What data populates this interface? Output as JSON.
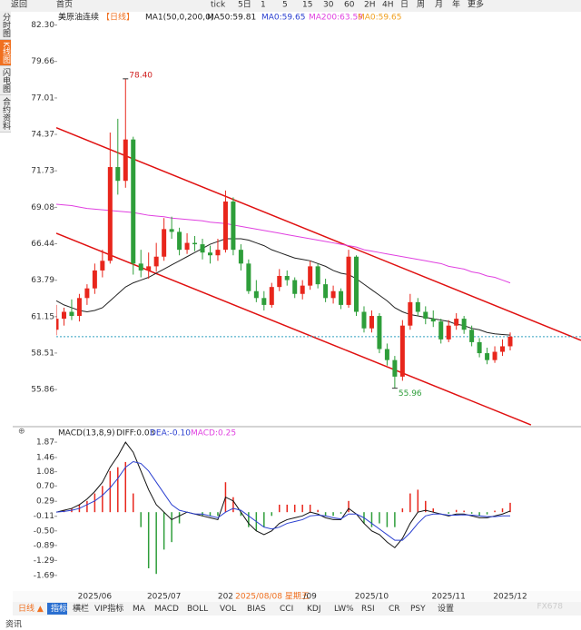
{
  "toolbar": [
    "返回",
    "首页",
    "tick",
    "5日",
    "1",
    "5",
    "15",
    "30",
    "60",
    "2H",
    "4H",
    "日",
    "周",
    "月",
    "年",
    "更多"
  ],
  "sidebar": [
    "分时图",
    "K线图",
    "闪电图",
    "合约资料"
  ],
  "chart_data": {
    "type": "candlestick",
    "header": {
      "symbol": "美原油连续",
      "period": "【日线】",
      "indicator": "MA1(50,0,200,0)",
      "items": [
        "MA50:59.81",
        "MA0:59.65",
        "MA200:63.59",
        "MA0:59.65"
      ]
    },
    "categories": [
      null,
      null,
      null,
      null,
      null,
      "2025/06",
      null,
      null,
      null,
      null,
      null,
      null,
      null,
      null,
      "2025/07",
      null,
      null,
      null,
      null,
      null,
      null,
      null,
      "202",
      null,
      null,
      null,
      null,
      null,
      null,
      null,
      null,
      null,
      null,
      "/09",
      null,
      null,
      null,
      null,
      null,
      null,
      null,
      "2025/10",
      null,
      null,
      null,
      null,
      null,
      null,
      null,
      null,
      null,
      "2025/11",
      null,
      null,
      null,
      null,
      null,
      null,
      null,
      "2025/12"
    ],
    "crosshair_label": "2025/08/08 星期五",
    "candles": [
      [
        60.2,
        62.0,
        59.8,
        61.0
      ],
      [
        61.0,
        61.8,
        60.5,
        61.5
      ],
      [
        61.5,
        62.4,
        60.9,
        61.2
      ],
      [
        61.2,
        62.8,
        60.8,
        62.5
      ],
      [
        62.5,
        63.5,
        62.0,
        63.2
      ],
      [
        63.2,
        65.0,
        62.8,
        64.5
      ],
      [
        64.5,
        66.0,
        64.0,
        65.2
      ],
      [
        65.2,
        74.5,
        65.0,
        72.0
      ],
      [
        72.0,
        75.5,
        70.0,
        71.0
      ],
      [
        71.0,
        78.4,
        70.5,
        74.0
      ],
      [
        74.0,
        74.2,
        64.2,
        65.0
      ],
      [
        65.0,
        66.0,
        64.0,
        64.5
      ],
      [
        64.5,
        65.8,
        63.9,
        64.8
      ],
      [
        64.8,
        66.5,
        64.4,
        65.5
      ],
      [
        65.5,
        68.3,
        65.2,
        67.5
      ],
      [
        67.5,
        68.4,
        66.8,
        67.3
      ],
      [
        67.3,
        67.6,
        65.6,
        66.0
      ],
      [
        66.0,
        67.2,
        65.7,
        66.5
      ],
      [
        66.5,
        67.0,
        65.9,
        66.4
      ],
      [
        66.4,
        66.8,
        65.3,
        65.8
      ],
      [
        65.8,
        66.3,
        65.0,
        65.6
      ],
      [
        65.6,
        66.8,
        65.2,
        66.0
      ],
      [
        66.0,
        70.3,
        65.8,
        69.5
      ],
      [
        69.5,
        69.8,
        65.6,
        66.0
      ],
      [
        66.0,
        66.4,
        64.5,
        65.0
      ],
      [
        65.0,
        65.3,
        62.8,
        63.0
      ],
      [
        63.0,
        63.8,
        62.2,
        62.5
      ],
      [
        62.5,
        63.0,
        61.6,
        62.0
      ],
      [
        62.0,
        63.6,
        61.8,
        63.3
      ],
      [
        63.3,
        64.6,
        63.0,
        64.1
      ],
      [
        64.1,
        64.5,
        63.4,
        63.8
      ],
      [
        63.8,
        64.0,
        62.5,
        62.8
      ],
      [
        62.8,
        63.8,
        62.4,
        63.4
      ],
      [
        63.4,
        65.2,
        63.1,
        64.8
      ],
      [
        64.8,
        65.0,
        63.2,
        63.5
      ],
      [
        63.5,
        63.9,
        62.2,
        62.5
      ],
      [
        62.5,
        63.4,
        62.1,
        63.0
      ],
      [
        63.0,
        63.2,
        61.7,
        62.0
      ],
      [
        62.0,
        66.0,
        61.8,
        65.5
      ],
      [
        65.5,
        65.6,
        61.2,
        61.5
      ],
      [
        61.5,
        61.9,
        60.0,
        60.3
      ],
      [
        60.3,
        61.6,
        60.0,
        61.2
      ],
      [
        61.2,
        61.4,
        58.5,
        58.8
      ],
      [
        58.8,
        59.2,
        57.6,
        58.0
      ],
      [
        58.0,
        58.3,
        55.96,
        56.8
      ],
      [
        56.8,
        60.9,
        56.5,
        60.5
      ],
      [
        60.5,
        62.8,
        60.2,
        62.2
      ],
      [
        62.2,
        62.5,
        61.2,
        61.5
      ],
      [
        61.5,
        61.9,
        60.6,
        61.0
      ],
      [
        61.0,
        61.6,
        60.4,
        60.8
      ],
      [
        60.8,
        61.0,
        59.2,
        59.5
      ],
      [
        59.5,
        60.9,
        59.3,
        60.5
      ],
      [
        60.5,
        61.4,
        60.2,
        61.0
      ],
      [
        61.0,
        61.2,
        59.9,
        60.2
      ],
      [
        60.2,
        60.5,
        59.0,
        59.3
      ],
      [
        59.3,
        59.6,
        58.2,
        58.5
      ],
      [
        58.5,
        58.9,
        57.7,
        58.0
      ],
      [
        58.0,
        59.0,
        57.8,
        58.6
      ],
      [
        58.6,
        59.5,
        58.3,
        59.0
      ],
      [
        59.0,
        60.0,
        58.7,
        59.7
      ]
    ],
    "up_color": "#e8261c",
    "down_color": "#2e9e3a",
    "series": [
      {
        "name": "MA50",
        "color": "#222222",
        "values": [
          62.3,
          62.0,
          61.8,
          61.6,
          61.5,
          61.6,
          61.8,
          62.3,
          62.8,
          63.3,
          63.6,
          63.8,
          64.0,
          64.3,
          64.6,
          64.9,
          65.2,
          65.5,
          65.8,
          66.1,
          66.4,
          66.6,
          66.8,
          66.8,
          66.8,
          66.7,
          66.5,
          66.3,
          66.0,
          65.8,
          65.6,
          65.4,
          65.3,
          65.2,
          65.0,
          64.8,
          64.5,
          64.3,
          64.2,
          63.9,
          63.5,
          63.1,
          62.7,
          62.3,
          61.8,
          61.5,
          61.3,
          61.2,
          61.1,
          61.0,
          60.9,
          60.8,
          60.6,
          60.5,
          60.3,
          60.2,
          60.0,
          59.9,
          59.85,
          59.81
        ]
      },
      {
        "name": "MA200",
        "color": "#e040e0",
        "values": [
          69.3,
          69.25,
          69.2,
          69.1,
          69.0,
          68.95,
          68.9,
          68.85,
          68.8,
          68.75,
          68.7,
          68.6,
          68.5,
          68.45,
          68.4,
          68.3,
          68.25,
          68.2,
          68.15,
          68.1,
          68.0,
          67.95,
          67.9,
          67.8,
          67.7,
          67.6,
          67.5,
          67.4,
          67.3,
          67.2,
          67.1,
          67.0,
          66.9,
          66.8,
          66.7,
          66.6,
          66.5,
          66.4,
          66.3,
          66.2,
          66.0,
          65.9,
          65.8,
          65.7,
          65.6,
          65.5,
          65.4,
          65.3,
          65.2,
          65.1,
          65.0,
          64.8,
          64.7,
          64.6,
          64.4,
          64.3,
          64.1,
          64.0,
          63.8,
          63.6
        ]
      }
    ],
    "trendlines": [
      {
        "color": "#e01010",
        "x": [
          0,
          68.2
        ],
        "y": [
          74.85,
          59.43
        ]
      },
      {
        "color": "#e01010",
        "x": [
          0,
          61.7
        ],
        "y": [
          67.2,
          53.3
        ]
      }
    ],
    "annotations": [
      {
        "index": 9,
        "value": 78.4,
        "label": "78.40",
        "color": "#d02020"
      },
      {
        "index": 44,
        "value": 55.96,
        "label": "55.96",
        "color": "#2e9e3a"
      }
    ],
    "ylim": [
      53.5,
      82.8
    ],
    "yticks": [
      {
        "value": 82.3,
        "label": "82.30"
      },
      79.66,
      77.01,
      74.37,
      71.73,
      69.08,
      66.44,
      63.79,
      61.15,
      58.51,
      55.86
    ],
    "grid": false,
    "macd": {
      "header": [
        "MACD(13,8,9)",
        "DIFF:0.03",
        "DEA:-0.10",
        "MACD:0.25"
      ],
      "ylim": [
        -1.96,
        2.09
      ],
      "yticks": [
        1.87,
        1.46,
        1.08,
        {
          "value": 0.7,
          "label": "0.70"
        },
        0.29,
        -0.11,
        {
          "value": -0.5,
          "label": "-0.50"
        },
        -0.89,
        -1.29,
        -1.69
      ],
      "hist": [
        0,
        0.06,
        0.1,
        0.2,
        0.3,
        0.5,
        0.7,
        1.1,
        1.2,
        1.34,
        0.5,
        -0.4,
        -1.5,
        -1.65,
        -1.0,
        -0.8,
        -0.3,
        0,
        0,
        -0.1,
        -0.1,
        -0.1,
        0.8,
        0.4,
        -0.1,
        -0.4,
        -0.5,
        -0.4,
        -0.1,
        0.2,
        0.2,
        0.2,
        0.2,
        0.2,
        0.06,
        -0.1,
        -0.1,
        -0.04,
        0.3,
        0,
        -0.3,
        -0.4,
        -0.3,
        -0.4,
        -0.4,
        0.1,
        0.5,
        0.6,
        0.3,
        0.1,
        0,
        -0.04,
        0.06,
        0.04,
        -0.04,
        -0.1,
        -0.06,
        0.04,
        0.1,
        0.25
      ],
      "series": [
        {
          "name": "DIFF",
          "color": "#111111",
          "values": [
            0.0,
            0.05,
            0.1,
            0.2,
            0.35,
            0.55,
            0.8,
            1.2,
            1.5,
            1.87,
            1.6,
            1.1,
            0.6,
            0.2,
            0.0,
            -0.2,
            -0.1,
            0.0,
            -0.05,
            -0.1,
            -0.15,
            -0.2,
            0.4,
            0.3,
            0.0,
            -0.3,
            -0.5,
            -0.6,
            -0.5,
            -0.3,
            -0.2,
            -0.15,
            -0.1,
            0.0,
            -0.05,
            -0.15,
            -0.2,
            -0.2,
            0.1,
            -0.05,
            -0.3,
            -0.5,
            -0.6,
            -0.8,
            -0.95,
            -0.7,
            -0.3,
            0.0,
            0.05,
            0.0,
            -0.05,
            -0.1,
            -0.05,
            -0.05,
            -0.1,
            -0.15,
            -0.15,
            -0.1,
            -0.05,
            0.03
          ]
        },
        {
          "name": "DEA",
          "color": "#2a3fd0",
          "values": [
            0.0,
            0.02,
            0.05,
            0.1,
            0.2,
            0.3,
            0.45,
            0.65,
            0.9,
            1.2,
            1.35,
            1.3,
            1.1,
            0.8,
            0.5,
            0.2,
            0.05,
            0.0,
            -0.05,
            -0.05,
            -0.1,
            -0.15,
            0.0,
            0.1,
            0.05,
            -0.1,
            -0.25,
            -0.4,
            -0.45,
            -0.4,
            -0.3,
            -0.25,
            -0.2,
            -0.1,
            -0.08,
            -0.1,
            -0.15,
            -0.18,
            -0.05,
            -0.05,
            -0.15,
            -0.3,
            -0.45,
            -0.6,
            -0.75,
            -0.75,
            -0.55,
            -0.3,
            -0.1,
            -0.05,
            -0.05,
            -0.08,
            -0.08,
            -0.07,
            -0.08,
            -0.1,
            -0.12,
            -0.12,
            -0.1,
            -0.1
          ]
        }
      ]
    }
  },
  "tabs": [
    "日线 ▲",
    "指标",
    "横栏",
    "VIP指标",
    "MA",
    "MACD",
    "BOLL",
    "VOL",
    "BIAS",
    "CCI",
    "KDJ",
    "LW%",
    "RSI",
    "CR",
    "PSY",
    "设置"
  ],
  "footer": "资讯",
  "watermark": "FX678"
}
